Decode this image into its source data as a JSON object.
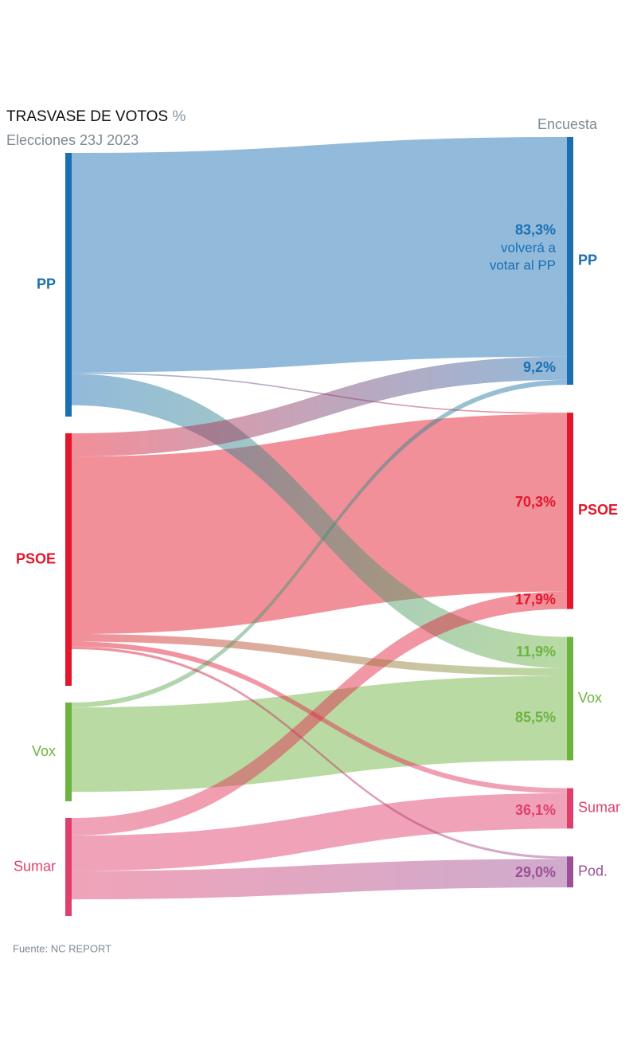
{
  "chart_data": {
    "type": "sankey",
    "title": "TRASVASE DE VOTOS",
    "title_unit": "%",
    "left_header": "Elecciones 23J 2023",
    "right_header": "Encuesta",
    "source": "Fuente: NC REPORT",
    "sources": [
      {
        "name": "PP",
        "color": "#1a6fb3",
        "value": 33.1
      },
      {
        "name": "PSOE",
        "color": "#e3162b",
        "value": 31.7
      },
      {
        "name": "Vox",
        "color": "#6db33f",
        "value": 12.4
      },
      {
        "name": "Sumar",
        "color": "#e03f6b",
        "value": 12.3
      }
    ],
    "targets": [
      {
        "name": "PP",
        "color": "#1a6fb3"
      },
      {
        "name": "PSOE",
        "color": "#e3162b"
      },
      {
        "name": "Vox",
        "color": "#6db33f"
      },
      {
        "name": "Sumar",
        "color": "#e03f6b"
      },
      {
        "name": "Pod.",
        "color": "#9b4f96"
      }
    ],
    "links": [
      {
        "source": 0,
        "target": 0,
        "value": 83.3,
        "label": "83,3%",
        "note": [
          "volverá a",
          "votar al PP"
        ]
      },
      {
        "source": 0,
        "target": 1,
        "value": 0.5
      },
      {
        "source": 0,
        "target": 2,
        "value": 11.9,
        "label": "11,9%"
      },
      {
        "source": 1,
        "target": 0,
        "value": 9.2,
        "label": "9,2%"
      },
      {
        "source": 1,
        "target": 1,
        "value": 70.3,
        "label": "70,3%"
      },
      {
        "source": 1,
        "target": 2,
        "value": 3
      },
      {
        "source": 1,
        "target": 3,
        "value": 2
      },
      {
        "source": 1,
        "target": 4,
        "value": 1
      },
      {
        "source": 2,
        "target": 0,
        "value": 5
      },
      {
        "source": 2,
        "target": 2,
        "value": 85.5,
        "label": "85,5%"
      },
      {
        "source": 3,
        "target": 1,
        "value": 17.9,
        "label": "17,9%"
      },
      {
        "source": 3,
        "target": 3,
        "value": 36.1,
        "label": "36,1%"
      },
      {
        "source": 3,
        "target": 4,
        "value": 29.0,
        "label": "29,0%"
      }
    ]
  }
}
